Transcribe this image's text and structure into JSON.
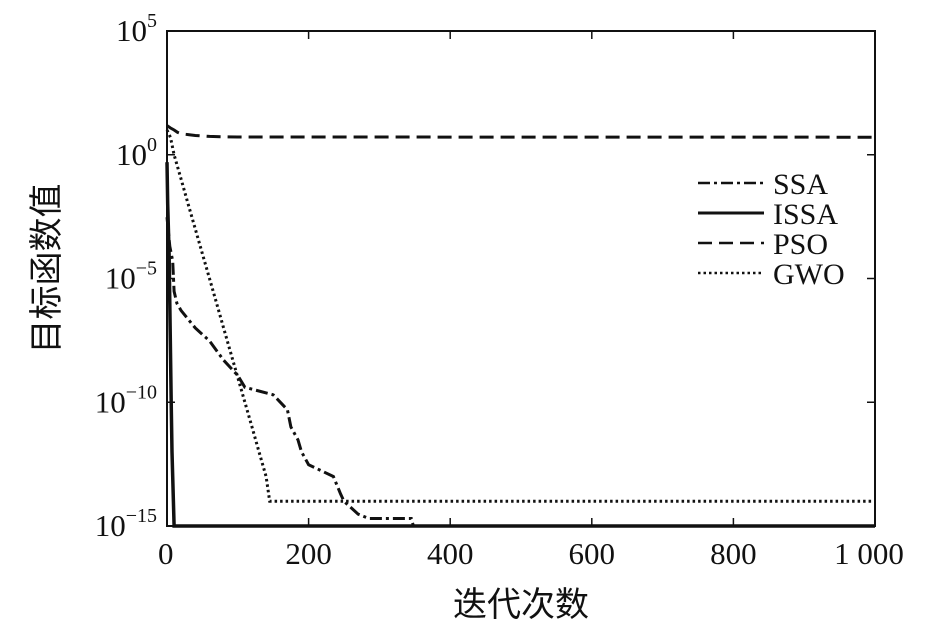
{
  "chart_data": {
    "type": "line",
    "xlabel": "迭代次数",
    "ylabel": "目标函数值",
    "x_scale": "linear",
    "y_scale": "log",
    "xlim": [
      0,
      1000
    ],
    "ylim": [
      1e-15,
      100000.0
    ],
    "x_ticks": [
      0,
      200,
      400,
      600,
      800,
      1000
    ],
    "x_tick_labels": [
      "0",
      "200",
      "400",
      "600",
      "800",
      "1 000"
    ],
    "y_ticks": [
      1e-15,
      1e-10,
      1e-05,
      1.0,
      100000.0
    ],
    "y_tick_labels": [
      {
        "base": "10",
        "exp": "−15"
      },
      {
        "base": "10",
        "exp": "−10"
      },
      {
        "base": "10",
        "exp": "−5"
      },
      {
        "base": "10",
        "exp": "0"
      },
      {
        "base": "10",
        "exp": "5"
      }
    ],
    "grid": false,
    "legend_position": "right",
    "series": [
      {
        "name": "SSA",
        "dash": "dashdot",
        "x": [
          0,
          4,
          8,
          10,
          14,
          20,
          40,
          60,
          80,
          100,
          110,
          150,
          170,
          175,
          185,
          190,
          200,
          235,
          245,
          250,
          270,
          285,
          290,
          345,
          348,
          1000
        ],
        "y": [
          0.003,
          0.0002,
          5e-05,
          3e-06,
          1e-06,
          5e-07,
          1e-07,
          3e-08,
          5e-09,
          1.2e-09,
          4e-10,
          2e-10,
          5e-11,
          1e-11,
          3e-12,
          1e-12,
          3e-13,
          1e-13,
          2e-14,
          1e-14,
          3e-15,
          2e-15,
          2e-15,
          2e-15,
          1e-15,
          1e-15
        ]
      },
      {
        "name": "ISSA",
        "dash": "solid",
        "x": [
          0,
          1,
          2,
          3,
          4,
          5,
          6,
          7,
          8,
          9,
          10,
          1000
        ],
        "y": [
          0.5,
          0.01,
          0.001,
          0.0001,
          1e-06,
          1e-08,
          1e-10,
          1e-12,
          1e-13,
          1e-14,
          1e-15,
          1e-15
        ]
      },
      {
        "name": "PSO",
        "dash": "dashed",
        "x": [
          0,
          5,
          10,
          15,
          20,
          30,
          40,
          60,
          80,
          100,
          1000
        ],
        "y": [
          15,
          12,
          10,
          8,
          7,
          6.5,
          6,
          5.5,
          5.3,
          5.2,
          5.1
        ]
      },
      {
        "name": "GWO",
        "dash": "dotted",
        "x": [
          0,
          5,
          10,
          20,
          30,
          40,
          50,
          60,
          70,
          80,
          90,
          100,
          110,
          120,
          130,
          140,
          145,
          150,
          1000
        ],
        "y": [
          10,
          5,
          1,
          0.1,
          0.01,
          0.001,
          0.0001,
          1e-05,
          1e-06,
          1e-07,
          1e-08,
          1e-09,
          1e-10,
          1e-11,
          1e-12,
          1e-13,
          1e-14,
          1e-14,
          1e-14
        ]
      }
    ]
  }
}
